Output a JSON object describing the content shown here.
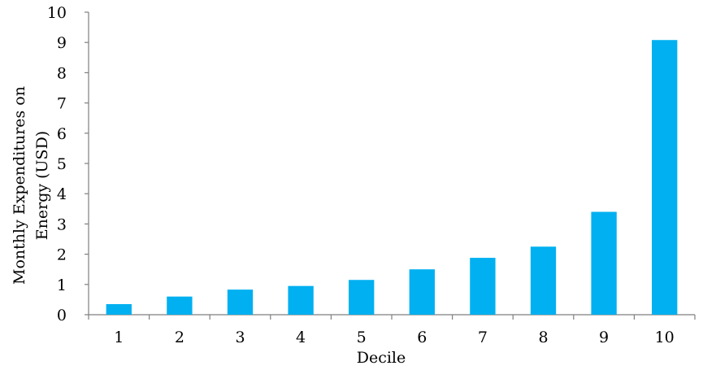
{
  "chart_data": {
    "type": "bar",
    "title": "",
    "xlabel": "Decile",
    "ylabel_lines": [
      "Monthly Expenditures on",
      "Energy  (USD)"
    ],
    "categories": [
      "1",
      "2",
      "3",
      "4",
      "5",
      "6",
      "7",
      "8",
      "9",
      "10"
    ],
    "values": [
      0.35,
      0.6,
      0.83,
      0.95,
      1.15,
      1.5,
      1.88,
      2.25,
      3.4,
      9.08
    ],
    "ylim": [
      0,
      10
    ],
    "yticks": [
      0,
      1,
      2,
      3,
      4,
      5,
      6,
      7,
      8,
      9,
      10
    ],
    "grid": false,
    "bar_color": "#00b0f0"
  }
}
